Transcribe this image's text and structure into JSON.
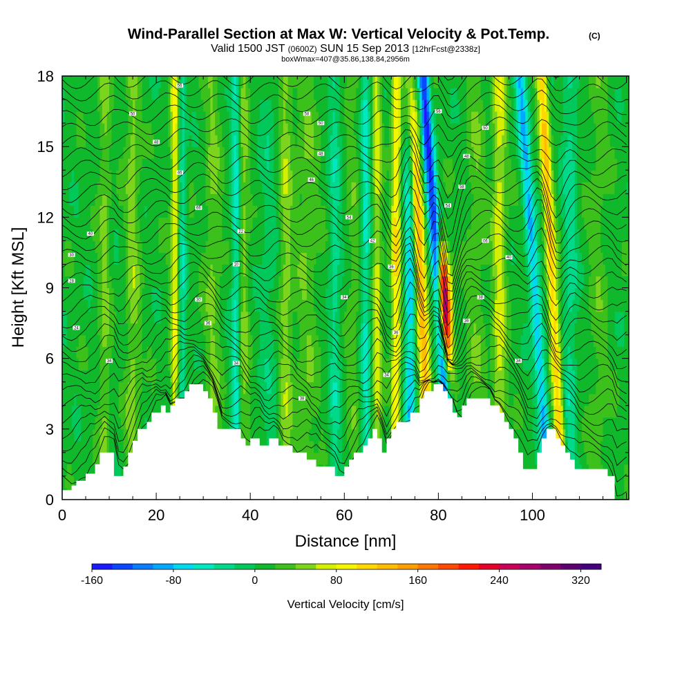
{
  "chart_data": {
    "type": "heatmap",
    "title": "Wind-Parallel Section at Max W: Vertical Velocity & Pot.Temp.",
    "title_mark": "(C)",
    "subtitle_parts": [
      "Valid 1500 JST",
      "(0600Z)",
      "SUN 15 Sep 2013",
      "[12hrFcst@2338z]"
    ],
    "subtitle2": "boxWmax=407@35.86,138.84,2956m",
    "xlabel": "Distance [nm]",
    "ylabel": "Height [Kft MSL]",
    "xlim": [
      0,
      120
    ],
    "ylim": [
      0,
      18
    ],
    "xticks": [
      "0",
      "20",
      "40",
      "60",
      "80",
      "100"
    ],
    "yticks": [
      "0",
      "3",
      "6",
      "9",
      "12",
      "15",
      "18"
    ],
    "colorbar": {
      "label": "Vertical Velocity [cm/s]",
      "range": [
        -160,
        340
      ],
      "step": 20,
      "ticks": [
        "-160",
        "-80",
        "0",
        "80",
        "160",
        "240",
        "320"
      ],
      "colors": [
        "#1a1aff",
        "#0a48ff",
        "#0a7cff",
        "#00a8ff",
        "#00d8f0",
        "#00e8c0",
        "#00d88a",
        "#00c85a",
        "#10b82c",
        "#3cc01c",
        "#7cd41c",
        "#d4f000",
        "#f6f600",
        "#ffd800",
        "#ffbc00",
        "#ffa000",
        "#ff7800",
        "#ff4a00",
        "#ff1a00",
        "#e6002a",
        "#c8005a",
        "#a8006c",
        "#82006e",
        "#5c0072",
        "#440080"
      ]
    },
    "terrain_kft": [
      [
        0,
        0.4
      ],
      [
        2,
        0.4
      ],
      [
        2,
        0.6
      ],
      [
        3,
        0.6
      ],
      [
        3,
        0.8
      ],
      [
        5,
        0.8
      ],
      [
        5,
        1.1
      ],
      [
        7,
        1.1
      ],
      [
        7,
        1.5
      ],
      [
        8,
        1.5
      ],
      [
        8,
        2
      ],
      [
        11,
        2
      ],
      [
        11,
        1
      ],
      [
        13,
        1
      ],
      [
        13,
        1.4
      ],
      [
        14,
        1.4
      ],
      [
        14,
        2
      ],
      [
        15,
        2
      ],
      [
        15,
        2.5
      ],
      [
        16,
        2.5
      ],
      [
        16,
        3
      ],
      [
        18,
        3
      ],
      [
        18,
        3.3
      ],
      [
        19,
        3.3
      ],
      [
        19,
        3.7
      ],
      [
        21,
        3.7
      ],
      [
        21,
        4
      ],
      [
        22,
        4
      ],
      [
        22,
        3.7
      ],
      [
        23,
        3.7
      ],
      [
        23,
        4
      ],
      [
        24,
        4
      ],
      [
        24,
        4.3
      ],
      [
        26,
        4.3
      ],
      [
        26,
        4.6
      ],
      [
        27,
        4.6
      ],
      [
        27,
        4.9
      ],
      [
        30,
        4.9
      ],
      [
        30,
        4.6
      ],
      [
        31,
        4.6
      ],
      [
        31,
        4.3
      ],
      [
        32,
        4.3
      ],
      [
        32,
        3.7
      ],
      [
        33,
        3.7
      ],
      [
        33,
        3
      ],
      [
        38,
        3
      ],
      [
        38,
        2.6
      ],
      [
        39,
        2.6
      ],
      [
        39,
        2.3
      ],
      [
        40,
        2.3
      ],
      [
        40,
        2.6
      ],
      [
        42,
        2.6
      ],
      [
        42,
        2.3
      ],
      [
        44,
        2.3
      ],
      [
        44,
        2.6
      ],
      [
        46,
        2.6
      ],
      [
        46,
        2.3
      ],
      [
        49,
        2.3
      ],
      [
        49,
        2
      ],
      [
        52,
        2
      ],
      [
        52,
        1.7
      ],
      [
        54,
        1.7
      ],
      [
        54,
        1.4
      ],
      [
        58,
        1.4
      ],
      [
        58,
        1
      ],
      [
        60,
        1
      ],
      [
        60,
        1.4
      ],
      [
        61,
        1.4
      ],
      [
        61,
        1.7
      ],
      [
        62,
        1.7
      ],
      [
        62,
        2
      ],
      [
        64,
        2
      ],
      [
        64,
        2.3
      ],
      [
        65,
        2.3
      ],
      [
        65,
        2.6
      ],
      [
        66,
        2.6
      ],
      [
        66,
        3
      ],
      [
        67,
        3
      ],
      [
        67,
        2.6
      ],
      [
        68,
        2.6
      ],
      [
        68,
        2
      ],
      [
        69,
        2
      ],
      [
        69,
        2.6
      ],
      [
        70,
        2.6
      ],
      [
        70,
        3
      ],
      [
        71,
        3
      ],
      [
        71,
        3.3
      ],
      [
        74,
        3.3
      ],
      [
        74,
        3.7
      ],
      [
        76,
        3.7
      ],
      [
        76,
        4.3
      ],
      [
        77,
        4.3
      ],
      [
        77,
        4.6
      ],
      [
        79,
        4.6
      ],
      [
        79,
        4.9
      ],
      [
        81,
        4.9
      ],
      [
        81,
        4.6
      ],
      [
        82,
        4.6
      ],
      [
        82,
        4.3
      ],
      [
        83,
        4.3
      ],
      [
        83,
        3.7
      ],
      [
        84,
        3.7
      ],
      [
        84,
        3.5
      ],
      [
        85,
        3.5
      ],
      [
        85,
        4
      ],
      [
        86,
        4
      ],
      [
        86,
        4.3
      ],
      [
        91,
        4.3
      ],
      [
        91,
        4
      ],
      [
        93,
        4
      ],
      [
        93,
        3.7
      ],
      [
        94,
        3.7
      ],
      [
        94,
        3.3
      ],
      [
        95,
        3.3
      ],
      [
        95,
        3
      ],
      [
        96,
        3
      ],
      [
        96,
        2.6
      ],
      [
        97,
        2.6
      ],
      [
        97,
        2
      ],
      [
        98,
        2
      ],
      [
        98,
        1.3
      ],
      [
        101,
        1.3
      ],
      [
        101,
        2
      ],
      [
        102,
        2
      ],
      [
        102,
        2.6
      ],
      [
        103,
        2.6
      ],
      [
        103,
        3
      ],
      [
        105,
        3
      ],
      [
        105,
        2.6
      ],
      [
        106,
        2.6
      ],
      [
        106,
        2.3
      ],
      [
        107,
        2.3
      ],
      [
        107,
        2
      ],
      [
        108,
        2
      ],
      [
        108,
        1.7
      ],
      [
        109,
        1.7
      ],
      [
        109,
        1.3
      ],
      [
        116,
        1.3
      ],
      [
        116,
        1
      ],
      [
        117.5,
        1
      ],
      [
        117.5,
        0
      ]
    ],
    "w_features": [
      {
        "x": 9,
        "w": 1.2,
        "top": 18,
        "v": 35
      },
      {
        "x": 15,
        "w": 1.5,
        "top": 18,
        "v": 40
      },
      {
        "x": 24,
        "w": 1.0,
        "top": 18,
        "v": 70
      },
      {
        "x": 25.5,
        "w": 0.9,
        "top": 18,
        "v": -50
      },
      {
        "x": 32,
        "w": 1.8,
        "top": 18,
        "v": 30
      },
      {
        "x": 37,
        "w": 1.0,
        "top": 18,
        "v": -60
      },
      {
        "x": 38.5,
        "w": 1.2,
        "top": 18,
        "v": 40
      },
      {
        "x": 44,
        "w": 2.0,
        "top": 18,
        "v": -20
      },
      {
        "x": 47.5,
        "w": 1.5,
        "top": 18,
        "v": 40
      },
      {
        "x": 52,
        "w": 2.5,
        "top": 18,
        "v": 25
      },
      {
        "x": 58,
        "w": 1.2,
        "top": 18,
        "v": -40
      },
      {
        "x": 62,
        "w": 1.5,
        "top": 18,
        "v": 20
      },
      {
        "x": 64.5,
        "w": 1.0,
        "top": 18,
        "v": -55
      },
      {
        "x": 67,
        "w": 1.0,
        "top": 18,
        "v": 55
      },
      {
        "x": 71,
        "w": 1.0,
        "top": 18,
        "v": 90
      },
      {
        "x": 74,
        "w": 1.2,
        "top": 18,
        "v": -85
      },
      {
        "x": 77,
        "w": 1.3,
        "top": 18,
        "v": 130,
        "dx": -0.25
      },
      {
        "x": 81,
        "w": 1.2,
        "top": 18,
        "v": -150,
        "dx": -0.35
      },
      {
        "x": 82,
        "w": 1.4,
        "top": 12,
        "v": 230,
        "dx": -0.25
      },
      {
        "x": 81.8,
        "w": 0.8,
        "top": 11,
        "v": 100,
        "dx": -0.25
      },
      {
        "x": 88,
        "w": 2.0,
        "top": 18,
        "v": 25
      },
      {
        "x": 93,
        "w": 1.5,
        "top": 18,
        "v": 60
      },
      {
        "x": 101.5,
        "w": 1.2,
        "top": 18,
        "v": -90,
        "dx": -0.35
      },
      {
        "x": 105,
        "w": 1.1,
        "top": 18,
        "v": 110,
        "dx": -0.25
      },
      {
        "x": 108,
        "w": 1.5,
        "top": 18,
        "v": -40
      },
      {
        "x": 114,
        "w": 2.0,
        "top": 18,
        "v": 20
      }
    ],
    "theta_contours_K": {
      "start": 302,
      "end": 368,
      "step": 2,
      "surface_kft": 0.5,
      "kft_per_K": 0.27
    },
    "theta_labels": [
      {
        "x": 2,
        "y": 10.4,
        "text": "30"
      },
      {
        "x": 2,
        "y": 9.3,
        "text": "28"
      },
      {
        "x": 3,
        "y": 7.3,
        "text": "24"
      },
      {
        "x": 10,
        "y": 5.9,
        "text": "34"
      },
      {
        "x": 6,
        "y": 11.3,
        "text": "40"
      },
      {
        "x": 15,
        "y": 16.4,
        "text": "50"
      },
      {
        "x": 20,
        "y": 15.2,
        "text": "48"
      },
      {
        "x": 25,
        "y": 17.6,
        "text": "56"
      },
      {
        "x": 25,
        "y": 13.9,
        "text": "46"
      },
      {
        "x": 29,
        "y": 12.4,
        "text": "66"
      },
      {
        "x": 29,
        "y": 8.5,
        "text": "30"
      },
      {
        "x": 31,
        "y": 7.5,
        "text": "36"
      },
      {
        "x": 38,
        "y": 11.4,
        "text": "22"
      },
      {
        "x": 37,
        "y": 10.0,
        "text": "10"
      },
      {
        "x": 37,
        "y": 5.8,
        "text": "34"
      },
      {
        "x": 52,
        "y": 16.4,
        "text": "58"
      },
      {
        "x": 55,
        "y": 16.0,
        "text": "50"
      },
      {
        "x": 55,
        "y": 14.7,
        "text": "48"
      },
      {
        "x": 53,
        "y": 13.6,
        "text": "46"
      },
      {
        "x": 51,
        "y": 4.3,
        "text": "38"
      },
      {
        "x": 61,
        "y": 12.0,
        "text": "54"
      },
      {
        "x": 60,
        "y": 8.6,
        "text": "34"
      },
      {
        "x": 66,
        "y": 11.0,
        "text": "42"
      },
      {
        "x": 70,
        "y": 9.9,
        "text": "36"
      },
      {
        "x": 71,
        "y": 7.1,
        "text": "36"
      },
      {
        "x": 69,
        "y": 5.3,
        "text": "34"
      },
      {
        "x": 80,
        "y": 16.5,
        "text": "56"
      },
      {
        "x": 82,
        "y": 12.5,
        "text": "54"
      },
      {
        "x": 85,
        "y": 13.3,
        "text": "58"
      },
      {
        "x": 86,
        "y": 14.6,
        "text": "48"
      },
      {
        "x": 90,
        "y": 15.8,
        "text": "50"
      },
      {
        "x": 86,
        "y": 7.6,
        "text": "36"
      },
      {
        "x": 89,
        "y": 8.6,
        "text": "38"
      },
      {
        "x": 90,
        "y": 11.0,
        "text": "06"
      },
      {
        "x": 95,
        "y": 10.3,
        "text": "40"
      },
      {
        "x": 97,
        "y": 5.9,
        "text": "34"
      }
    ]
  }
}
